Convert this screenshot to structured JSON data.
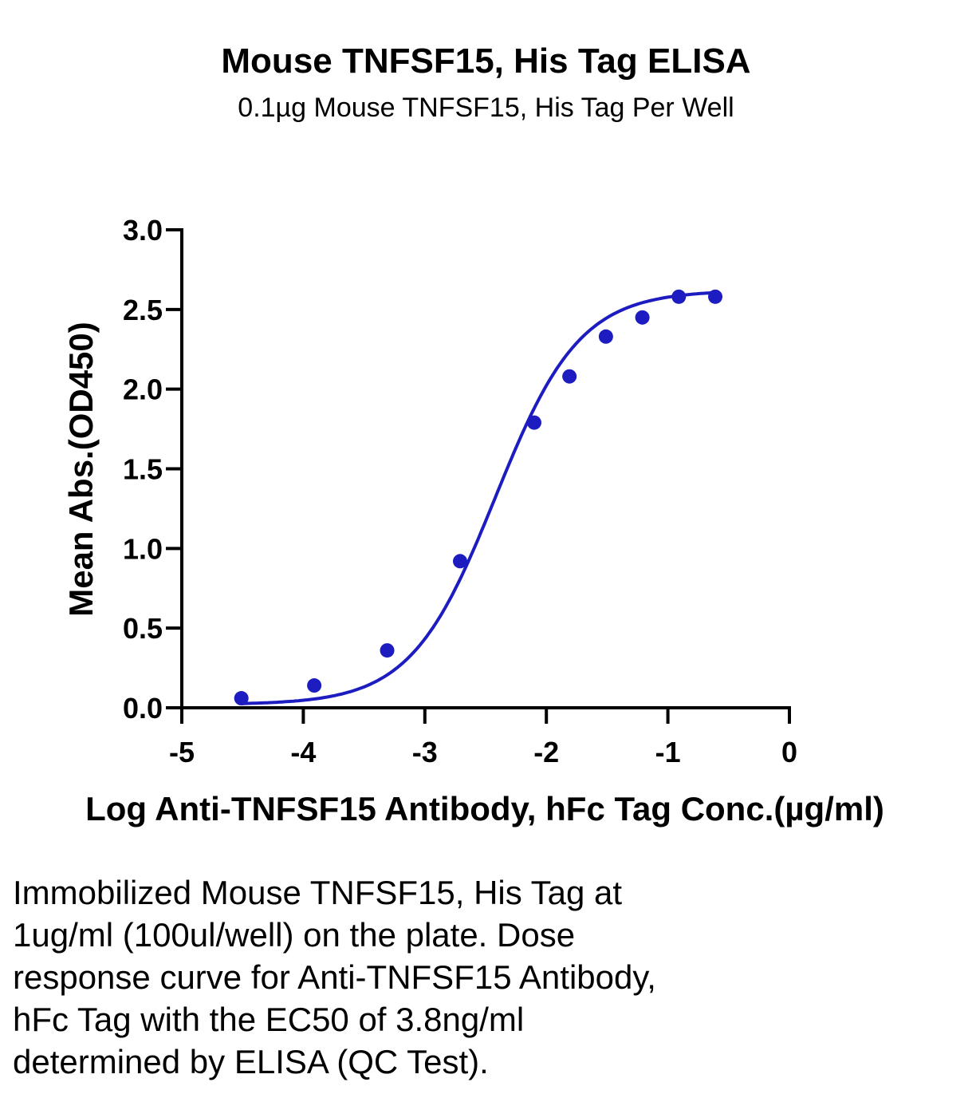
{
  "chart_data": {
    "type": "scatter",
    "title": "Mouse TNFSF15, His Tag ELISA",
    "subtitle": "0.1µg Mouse TNFSF15, His Tag Per Well",
    "xlabel": "Log Anti-TNFSF15 Antibody, hFc Tag Conc.(µg/ml)",
    "ylabel": "Mean Abs.(OD450)",
    "xlim": [
      -5,
      0
    ],
    "ylim": [
      0,
      3.0
    ],
    "xticks": [
      "-5",
      "-4",
      "-3",
      "-2",
      "-1",
      "0"
    ],
    "yticks": [
      "0.0",
      "0.5",
      "1.0",
      "1.5",
      "2.0",
      "2.5",
      "3.0"
    ],
    "grid": false,
    "fit": "four-parameter logistic curve",
    "series": [
      {
        "x": [
          -4.51,
          -3.91,
          -3.31,
          -2.71,
          -2.1,
          -1.81,
          -1.51,
          -1.21,
          -0.91,
          -0.61
        ],
        "y": [
          0.06,
          0.14,
          0.36,
          0.92,
          1.79,
          2.08,
          2.33,
          2.45,
          2.58,
          2.58
        ]
      }
    ],
    "colors": {
      "series": "#1c1cc0",
      "axis": "#000000"
    }
  },
  "caption": {
    "lines": [
      "Immobilized Mouse TNFSF15, His Tag at",
      "1ug/ml (100ul/well) on the plate. Dose",
      "response curve for Anti-TNFSF15 Antibody,",
      "hFc Tag with the EC50 of 3.8ng/ml",
      "determined by ELISA (QC Test)."
    ]
  }
}
